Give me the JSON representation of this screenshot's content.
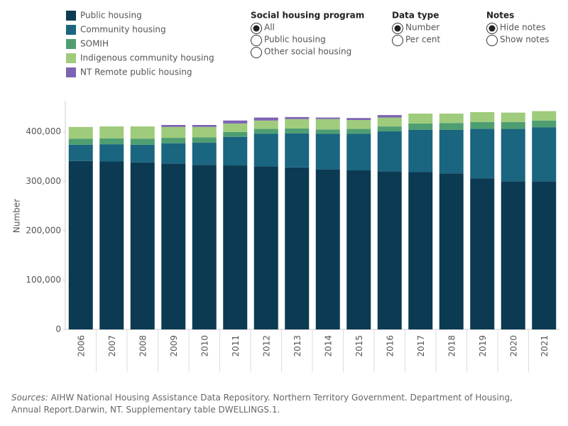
{
  "chart_data": {
    "type": "stacked_bar",
    "categories": [
      "2006",
      "2007",
      "2008",
      "2009",
      "2010",
      "2011",
      "2012",
      "2013",
      "2014",
      "2015",
      "2016",
      "2017",
      "2018",
      "2019",
      "2020",
      "2021"
    ],
    "series": [
      {
        "name": "Public housing",
        "color": "#0b3a52",
        "values": [
          341000,
          340000,
          338000,
          336000,
          333000,
          332000,
          330000,
          328000,
          324000,
          322000,
          320000,
          319000,
          316000,
          306000,
          300000,
          300000
        ]
      },
      {
        "name": "Community housing",
        "color": "#1a6580",
        "values": [
          33000,
          35000,
          36000,
          41000,
          45000,
          58000,
          66000,
          69000,
          72000,
          74000,
          81000,
          85000,
          88000,
          100000,
          106000,
          109000
        ]
      },
      {
        "name": "SOMIH",
        "color": "#4f9e72",
        "values": [
          12000,
          12000,
          12000,
          11000,
          11000,
          10000,
          10000,
          10000,
          9000,
          10000,
          10000,
          13000,
          14000,
          14000,
          14000,
          14000
        ]
      },
      {
        "name": "Indigenous community housing",
        "color": "#9fcb7c",
        "values": [
          24000,
          24000,
          25000,
          22000,
          21000,
          17000,
          17000,
          19000,
          21000,
          18000,
          18000,
          20000,
          19000,
          20000,
          19000,
          19000
        ]
      },
      {
        "name": "NT Remote public housing",
        "color": "#7d63b3",
        "values": [
          null,
          null,
          null,
          4000,
          4000,
          6000,
          6000,
          4000,
          3000,
          4000,
          5000,
          null,
          null,
          null,
          null,
          null
        ]
      }
    ],
    "y_label": "Number",
    "ylim": [
      0,
      460000
    ],
    "yticks": [
      0,
      {
        "value": 100000,
        "label": "100,000"
      },
      {
        "value": 200000,
        "label": "200,000"
      },
      {
        "value": 300000,
        "label": "300,000"
      },
      {
        "value": 400000,
        "label": "400,000"
      }
    ],
    "grid": false
  },
  "controls": [
    {
      "title": "Social housing program",
      "options": [
        "All",
        "Public housing",
        "Other social housing"
      ],
      "selected": 0
    },
    {
      "title": "Data type",
      "options": [
        "Number",
        "Per cent"
      ],
      "selected": 0
    },
    {
      "title": "Notes",
      "options": [
        "Hide notes",
        "Show notes"
      ],
      "selected": 0
    }
  ],
  "sources": {
    "label": "Sources:",
    "text": " AIHW National Housing Assistance Data Repository. Northern Territory Government. Department of Housing, Annual Report.Darwin, NT.  Supplementary table DWELLINGS.1."
  }
}
